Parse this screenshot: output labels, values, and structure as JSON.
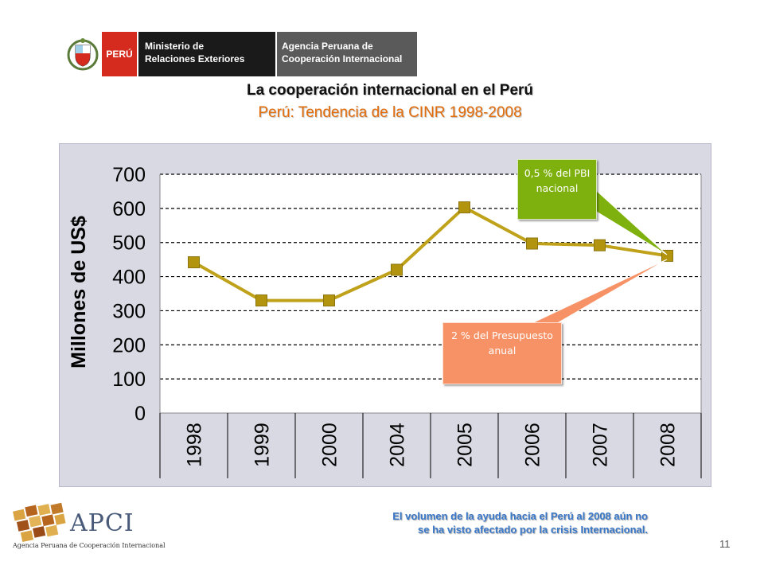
{
  "header": {
    "peru_label": "PERÚ",
    "ministry_line1": "Ministerio de",
    "ministry_line2": "Relaciones Exteriores",
    "agency_line1": "Agencia Peruana de",
    "agency_line2": "Cooperación Internacional"
  },
  "title": "La cooperación internacional en el Perú",
  "subtitle": "Perú: Tendencia de la CINR 1998-2008",
  "chart_data": {
    "type": "line",
    "title": "",
    "xlabel": "",
    "ylabel": "Millones de US$",
    "categories": [
      "1998",
      "1999",
      "2000",
      "2004",
      "2005",
      "2006",
      "2007",
      "2008"
    ],
    "series": [
      {
        "values": [
          442,
          330,
          330,
          420,
          603,
          497,
          492,
          461
        ]
      }
    ],
    "ylim": [
      0,
      700
    ],
    "yticks": [
      0,
      100,
      200,
      300,
      400,
      500,
      600,
      700
    ],
    "grid": true,
    "grid_style": "dashed",
    "colors": {
      "line": "#bfa21a",
      "marker": "#b3940f",
      "plot_bg": "#ffffff"
    }
  },
  "callouts": {
    "pbi_text": "0,5 % del PBI nacional",
    "presupuesto_text": "2 % del Presupuesto anual",
    "pbi_color": "#7fb10e",
    "presupuesto_color": "#f79266"
  },
  "footer": {
    "apci_word": "APCI",
    "apci_subtitle": "Agencia Peruana de Cooperación Internacional",
    "note_line1": "El volumen de la ayuda hacia el Perú al 2008 aún no",
    "note_line2": "se ha visto afectado por la crisis Internacional.",
    "page_number": "11"
  }
}
